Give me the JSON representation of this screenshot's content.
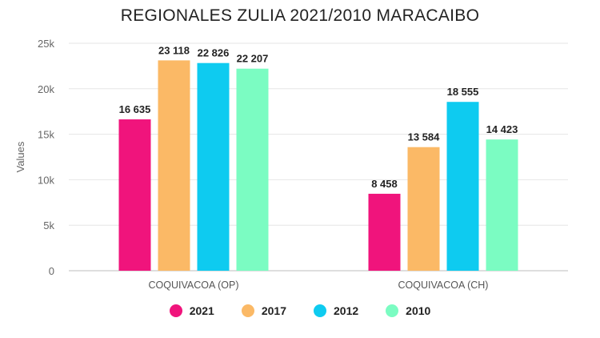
{
  "chart_data": {
    "type": "bar",
    "title": "REGIONALES ZULIA 2021/2010 MARACAIBO",
    "xlabel": "",
    "ylabel": "Values",
    "ylim": [
      0,
      25000
    ],
    "yticks": [
      0,
      5000,
      10000,
      15000,
      20000,
      25000
    ],
    "ytick_labels": [
      "0",
      "5k",
      "10k",
      "15k",
      "20k",
      "25k"
    ],
    "grid": true,
    "legend_position": "bottom",
    "categories": [
      "COQUIVACOA (OP)",
      "COQUIVACOA (CH)"
    ],
    "series": [
      {
        "name": "2021",
        "color": "#f0147c",
        "values": [
          16635,
          8458
        ],
        "labels": [
          "16 635",
          "8 458"
        ]
      },
      {
        "name": "2017",
        "color": "#fbb966",
        "values": [
          23118,
          13584
        ],
        "labels": [
          "23 118",
          "13 584"
        ]
      },
      {
        "name": "2012",
        "color": "#0ecbf0",
        "values": [
          22826,
          18555
        ],
        "labels": [
          "22 826",
          "18 555"
        ]
      },
      {
        "name": "2010",
        "color": "#7bfcc2",
        "values": [
          22207,
          14423
        ],
        "labels": [
          "22 207",
          "14 423"
        ]
      }
    ]
  }
}
